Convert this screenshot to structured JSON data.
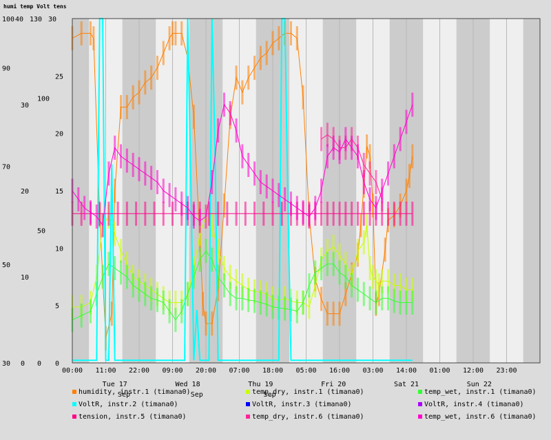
{
  "chart_data": {
    "type": "line",
    "title": "humi temp Volt tens",
    "axes": [
      {
        "id": "humi",
        "ticks": [
          "100",
          "90",
          "70",
          "50",
          "30"
        ],
        "min": 30,
        "max": 100
      },
      {
        "id": "temp",
        "ticks": [
          "40",
          "30",
          "20",
          "10",
          "0"
        ],
        "min": 0,
        "max": 40
      },
      {
        "id": "volt",
        "ticks": [
          "130",
          "100",
          "50",
          "0"
        ],
        "min": 0,
        "max": 130
      },
      {
        "id": "tens",
        "ticks": [
          "30",
          "25",
          "20",
          "15",
          "10",
          "5",
          "0"
        ],
        "min": 0,
        "max": 30
      }
    ],
    "x_time_labels": [
      "00:00",
      "11:00",
      "22:00",
      "09:00",
      "20:00",
      "07:00",
      "18:00",
      "05:00",
      "16:00",
      "03:00",
      "14:00",
      "01:00",
      "12:00",
      "23:00"
    ],
    "x_day_labels": [
      "Tue 17",
      "Sep",
      "Wed 18",
      "Sep",
      "Thu 19",
      "Sep",
      "Fri 20",
      "Sat 21",
      "Sun 22"
    ],
    "x_range_hours": [
      0,
      154
    ],
    "x_step_hours": 11,
    "grid": true,
    "colors": {
      "plot_light": "#efefef",
      "plot_dark": "#cccccc",
      "humidity": "#ff7f00",
      "temp_dry_1": "#c8ff00",
      "temp_wet_1": "#33ff33",
      "voltR_2": "#00ffff",
      "voltR_3": "#0000ff",
      "voltR_4": "#aa00ff",
      "tension_5": "#ff0088",
      "temp_dry_6": "#ff2299",
      "temp_wet_6": "#ff00cc"
    },
    "series": [
      {
        "name": "humidity, instr.1 (timana0)",
        "axis": "humi",
        "color": "#ff7f00",
        "x": [
          0,
          3,
          6,
          7,
          9,
          11,
          13,
          14,
          16,
          18,
          20,
          22,
          24,
          26,
          28,
          30,
          32,
          33,
          34,
          36,
          38,
          40,
          42,
          43,
          44,
          46,
          48,
          50,
          52,
          54,
          56,
          58,
          60,
          62,
          64,
          66,
          68,
          70,
          72,
          74,
          76,
          78,
          80,
          82,
          84,
          86,
          88,
          90,
          92,
          94,
          95,
          96,
          97,
          98,
          99,
          100,
          101,
          103,
          104,
          106,
          108,
          110,
          111,
          112
        ],
        "y": [
          96,
          97,
          97,
          96,
          60,
          35,
          40,
          65,
          82,
          82,
          84,
          85,
          87,
          88,
          90,
          93,
          96,
          97,
          97,
          97,
          92,
          80,
          55,
          42,
          38,
          38,
          45,
          62,
          80,
          88,
          85,
          88,
          90,
          92,
          93,
          95,
          96,
          97,
          97,
          96,
          84,
          60,
          47,
          43,
          40,
          40,
          40,
          44,
          48,
          52,
          58,
          66,
          74,
          72,
          62,
          42,
          44,
          53,
          59,
          60,
          62,
          65,
          68,
          72
        ]
      },
      {
        "name": "temp_dry, instr.1 (timana0)",
        "axis": "temp",
        "color": "#c8ff00",
        "x": [
          0,
          3,
          6,
          8,
          10,
          12,
          14,
          16,
          18,
          20,
          22,
          24,
          26,
          28,
          30,
          32,
          34,
          36,
          38,
          40,
          42,
          44,
          46,
          48,
          50,
          52,
          54,
          56,
          58,
          60,
          62,
          64,
          66,
          68,
          70,
          72,
          74,
          76,
          78,
          80,
          82,
          84,
          86,
          88,
          90,
          92,
          94,
          96,
          97,
          98,
          99,
          100,
          101,
          102,
          104,
          106,
          108,
          110,
          112
        ],
        "y": [
          6.5,
          6.5,
          7,
          10,
          16,
          17,
          15,
          13,
          11.5,
          10,
          9.5,
          9,
          8.5,
          8,
          7.5,
          7,
          7,
          7,
          8,
          11,
          15,
          17,
          16,
          13,
          11,
          10,
          9.5,
          9,
          8.5,
          8.3,
          8.2,
          8,
          7.5,
          7.3,
          7.5,
          7.2,
          7,
          7,
          6.5,
          9,
          12,
          13,
          13.5,
          12.5,
          11.5,
          10,
          13,
          14,
          16,
          11,
          10,
          9.5,
          9,
          9.5,
          9.5,
          9,
          9,
          8.5,
          8.5
        ]
      },
      {
        "name": "temp_wet, instr.1 (timana0)",
        "axis": "temp",
        "color": "#33ff33",
        "x": [
          0,
          3,
          6,
          8,
          10,
          12,
          14,
          16,
          18,
          20,
          22,
          24,
          26,
          28,
          30,
          32,
          34,
          36,
          38,
          40,
          42,
          44,
          46,
          48,
          50,
          52,
          54,
          56,
          58,
          60,
          62,
          64,
          66,
          68,
          70,
          72,
          74,
          76,
          78,
          80,
          82,
          84,
          86,
          88,
          90,
          92,
          94,
          96,
          98,
          100,
          102,
          104,
          106,
          108,
          110,
          112
        ],
        "y": [
          5,
          5.5,
          6,
          8,
          10,
          11.5,
          11,
          10.5,
          10,
          9,
          8.5,
          8,
          7.5,
          7.3,
          7,
          6,
          5,
          6,
          8,
          10,
          12,
          13,
          12,
          10,
          9,
          8,
          7.5,
          7.5,
          7.3,
          7.2,
          7,
          6.8,
          6.5,
          6.4,
          6.3,
          6.2,
          6,
          7,
          9,
          10.5,
          11,
          11.5,
          11.5,
          10.5,
          10,
          9,
          8.5,
          8,
          7.5,
          7,
          7.5,
          7.5,
          7.2,
          7,
          7,
          7
        ]
      },
      {
        "name": "VoltR, instr.2 (timana0)",
        "axis": "volt",
        "color": "#00ffff",
        "x": [
          0,
          2,
          4,
          6,
          7,
          8,
          9,
          10,
          11,
          12,
          13,
          14,
          16,
          18,
          20,
          22,
          24,
          26,
          28,
          30,
          32,
          34,
          35,
          36,
          37,
          38,
          39,
          40,
          41,
          42,
          43,
          44,
          45,
          46,
          47,
          48,
          50,
          52,
          54,
          56,
          58,
          60,
          62,
          64,
          66,
          67,
          68,
          69,
          70,
          71,
          72,
          73,
          74,
          76,
          78,
          80,
          82,
          84,
          86,
          88,
          90,
          92,
          94,
          96,
          98,
          100,
          102,
          104,
          106,
          108,
          110,
          112
        ],
        "y": [
          1,
          1,
          1,
          1,
          1,
          1,
          130,
          130,
          1,
          1,
          75,
          1,
          1,
          1,
          1,
          1,
          1,
          1,
          1,
          1,
          1,
          1,
          1,
          1,
          1,
          130,
          70,
          1,
          20,
          1,
          1,
          1,
          1,
          130,
          80,
          1,
          1,
          1,
          1,
          1,
          1,
          1,
          1,
          1,
          1,
          1,
          1,
          130,
          130,
          60,
          1,
          1,
          1,
          1,
          1,
          1,
          1,
          1,
          1,
          1,
          1,
          1,
          1,
          1,
          1,
          1,
          1,
          1,
          1,
          1,
          1,
          1
        ]
      },
      {
        "name": "VoltR, instr.3 (timana0)",
        "axis": "volt",
        "color": "#0000ff",
        "x": [],
        "y": []
      },
      {
        "name": "VoltR, instr.4 (timana0)",
        "axis": "volt",
        "color": "#aa00ff",
        "x": [],
        "y": []
      },
      {
        "name": "tension, instr.5 (timana0)",
        "axis": "tens",
        "color": "#ff0088",
        "x": [
          0,
          3,
          6,
          9,
          12,
          15,
          18,
          21,
          24,
          27,
          30,
          33,
          36,
          38,
          40,
          42,
          45,
          48,
          51,
          54,
          57,
          60,
          63,
          66,
          69,
          72,
          74,
          76,
          78,
          80,
          82,
          84,
          86,
          88,
          90,
          92,
          94,
          96,
          98,
          100,
          102,
          104,
          106,
          108,
          110,
          112
        ],
        "y": [
          13,
          13,
          13,
          13,
          13,
          13,
          13,
          13,
          13,
          13,
          13,
          13,
          13,
          13,
          13,
          13,
          13,
          13,
          13,
          13,
          13,
          13,
          13,
          13,
          13,
          13,
          13,
          13,
          13,
          13,
          13,
          13,
          13,
          13,
          13,
          13,
          13,
          13,
          13,
          13,
          13,
          13,
          13,
          13,
          13,
          13
        ]
      },
      {
        "name": "temp_dry, instr.6 (timana0)",
        "axis": "temp",
        "color": "#ff2299",
        "x": [
          82,
          84,
          86,
          88,
          90,
          92,
          94,
          96,
          98,
          100,
          102
        ],
        "y": [
          26,
          26.5,
          26,
          25,
          25,
          26,
          25,
          23,
          22,
          21,
          19
        ]
      },
      {
        "name": "temp_wet, instr.6 (timana0)",
        "axis": "temp",
        "color": "#ff00cc",
        "x": [
          0,
          2,
          4,
          6,
          8,
          10,
          12,
          14,
          16,
          18,
          20,
          22,
          24,
          26,
          28,
          30,
          32,
          34,
          36,
          38,
          40,
          42,
          44,
          46,
          48,
          50,
          52,
          54,
          56,
          58,
          60,
          62,
          64,
          66,
          68,
          70,
          72,
          74,
          76,
          78,
          80,
          82,
          84,
          86,
          88,
          90,
          92,
          94,
          96,
          98,
          100,
          102,
          104,
          106,
          108,
          110,
          112
        ],
        "y": [
          20,
          19,
          18,
          17.5,
          17,
          16,
          22,
          25,
          24,
          23.5,
          23,
          22.5,
          22,
          21.5,
          21,
          20,
          19.5,
          19,
          18.5,
          18,
          17,
          16.5,
          17,
          21,
          27,
          30,
          29,
          27,
          24,
          23,
          22,
          21,
          20.5,
          20,
          19.5,
          19,
          18.5,
          18,
          17.5,
          17,
          18,
          20,
          24,
          25,
          24.5,
          26,
          25,
          24,
          21,
          19,
          18,
          20,
          22,
          24,
          26,
          28,
          30
        ]
      }
    ]
  }
}
